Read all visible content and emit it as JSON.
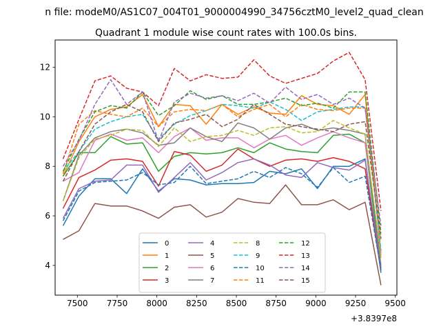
{
  "suptitle": "n file: modeM0/AS1C07_004T01_9000004990_34756cztM0_level2_quad_clean",
  "chart_data": {
    "type": "line",
    "title": "Quadrant 1 module wise count rates with 100.0s bins.",
    "xlabel": "",
    "ylabel": "",
    "x_offset_label": "+3.8397e8",
    "xlim": [
      7360,
      9510
    ],
    "ylim": [
      2.8,
      13.1
    ],
    "grid": false,
    "legend_position": "lower center",
    "x_ticks": [
      7500,
      7750,
      8000,
      8250,
      8500,
      8750,
      9000,
      9250,
      9500
    ],
    "y_ticks": [
      4,
      6,
      8,
      10,
      12
    ],
    "x": [
      7410,
      7460,
      7510,
      7560,
      7610,
      7660,
      7710,
      7760,
      7810,
      7860,
      7910,
      7960,
      8010,
      8060,
      8110,
      8160,
      8210,
      8260,
      8310,
      8360,
      8410,
      8460,
      8510,
      8560,
      8610,
      8660,
      8710,
      8760,
      8810,
      8860,
      8910,
      8960,
      9010,
      9060,
      9110,
      9160,
      9210,
      9260,
      9310,
      9360,
      9410
    ],
    "series": [
      {
        "name": "0",
        "color": "#1f77b4",
        "dash": "solid",
        "x": [
          7410,
          7510,
          7610,
          7710,
          7810,
          7910,
          8010,
          8110,
          8210,
          8310,
          8410,
          8510,
          8610,
          8710,
          8810,
          8910,
          9010,
          9110,
          9210,
          9310,
          9410
        ],
        "values": [
          5.6,
          6.8,
          7.5,
          7.5,
          6.9,
          7.9,
          7.0,
          7.5,
          7.45,
          7.25,
          7.3,
          7.3,
          7.35,
          7.8,
          7.7,
          7.9,
          7.1,
          8.0,
          8.0,
          8.3,
          3.7
        ]
      },
      {
        "name": "1",
        "color": "#ff7f0e",
        "dash": "solid",
        "x": [
          7410,
          7510,
          7610,
          7710,
          7810,
          7910,
          8010,
          8110,
          8210,
          8310,
          8410,
          8510,
          8610,
          8710,
          8810,
          8910,
          9010,
          9110,
          9210,
          9310,
          9410
        ],
        "values": [
          7.6,
          9.0,
          10.0,
          10.3,
          10.4,
          10.9,
          9.6,
          10.5,
          10.45,
          9.7,
          10.5,
          10.1,
          10.4,
          10.15,
          10.1,
          10.85,
          10.5,
          10.45,
          10.1,
          10.9,
          4.5
        ]
      },
      {
        "name": "2",
        "color": "#2ca02c",
        "dash": "solid",
        "x": [
          7410,
          7510,
          7610,
          7710,
          7810,
          7910,
          8010,
          8110,
          8210,
          8310,
          8410,
          8510,
          8610,
          8710,
          8810,
          8910,
          9010,
          9110,
          9210,
          9310,
          9410
        ],
        "values": [
          7.6,
          8.55,
          8.55,
          9.2,
          8.9,
          8.95,
          7.8,
          8.4,
          8.55,
          8.5,
          8.55,
          8.75,
          8.55,
          8.95,
          8.7,
          8.6,
          8.55,
          9.25,
          9.3,
          8.95,
          3.9
        ]
      },
      {
        "name": "3",
        "color": "#d62728",
        "dash": "solid",
        "x": [
          7410,
          7510,
          7610,
          7710,
          7810,
          7910,
          8010,
          8110,
          8210,
          8310,
          8410,
          8510,
          8610,
          8710,
          8810,
          8910,
          9010,
          9110,
          9210,
          9310,
          9410
        ],
        "values": [
          6.3,
          7.55,
          7.85,
          8.25,
          8.3,
          8.2,
          7.2,
          8.6,
          8.45,
          7.8,
          8.05,
          8.7,
          8.3,
          8.0,
          8.25,
          8.3,
          8.2,
          8.35,
          8.2,
          7.9,
          3.8
        ]
      },
      {
        "name": "4",
        "color": "#9467bd",
        "dash": "solid",
        "x": [
          7410,
          7510,
          7610,
          7710,
          7810,
          7910,
          8010,
          8110,
          8210,
          8310,
          8410,
          8510,
          8610,
          8710,
          8810,
          8910,
          9010,
          9110,
          9210,
          9310,
          9410
        ],
        "values": [
          5.9,
          7.1,
          7.4,
          7.45,
          8.05,
          8.05,
          6.95,
          7.55,
          8.15,
          7.45,
          7.75,
          8.15,
          8.3,
          8.05,
          7.65,
          7.55,
          8.15,
          7.95,
          7.85,
          8.25,
          3.9
        ]
      },
      {
        "name": "5",
        "color": "#8c564b",
        "dash": "solid",
        "x": [
          7410,
          7510,
          7610,
          7710,
          7810,
          7910,
          8010,
          8110,
          8210,
          8310,
          8410,
          8510,
          8610,
          8710,
          8810,
          8910,
          9010,
          9110,
          9210,
          9310,
          9410
        ],
        "values": [
          5.05,
          5.4,
          6.5,
          6.4,
          6.4,
          6.2,
          5.9,
          6.35,
          6.45,
          5.95,
          6.15,
          6.7,
          6.55,
          6.5,
          7.25,
          6.45,
          6.45,
          6.65,
          6.25,
          6.55,
          3.2
        ]
      },
      {
        "name": "6",
        "color": "#e377c2",
        "dash": "solid",
        "x": [
          7410,
          7510,
          7610,
          7710,
          7810,
          7910,
          8010,
          8110,
          8210,
          8310,
          8410,
          8510,
          8610,
          8710,
          8810,
          8910,
          9010,
          9110,
          9210,
          9310,
          9410
        ],
        "values": [
          7.4,
          7.75,
          9.05,
          9.3,
          9.05,
          9.15,
          8.55,
          9.2,
          9.55,
          9.05,
          9.15,
          9.15,
          8.75,
          9.1,
          9.25,
          8.85,
          9.15,
          9.4,
          9.15,
          8.95,
          4.4
        ]
      },
      {
        "name": "7",
        "color": "#7f7f7f",
        "dash": "solid",
        "x": [
          7410,
          7510,
          7610,
          7710,
          7810,
          7910,
          8010,
          8110,
          8210,
          8310,
          8410,
          8510,
          8610,
          8710,
          8810,
          8910,
          9010,
          9110,
          9210,
          9310,
          9410
        ],
        "values": [
          6.6,
          8.45,
          9.15,
          9.4,
          9.5,
          9.35,
          8.85,
          8.95,
          9.55,
          9.2,
          9.0,
          9.75,
          9.55,
          9.1,
          9.55,
          9.7,
          9.45,
          9.55,
          9.45,
          9.3,
          4.0
        ]
      },
      {
        "name": "8",
        "color": "#bcbd22",
        "dash": "dashed",
        "x": [
          7410,
          7510,
          7610,
          7710,
          7810,
          7910,
          8010,
          8110,
          8210,
          8310,
          8410,
          8510,
          8610,
          8710,
          8810,
          8910,
          9010,
          9110,
          9210,
          9310,
          9410
        ],
        "values": [
          6.6,
          8.35,
          9.1,
          9.25,
          9.5,
          9.45,
          8.8,
          9.55,
          9.0,
          9.2,
          9.25,
          9.45,
          9.25,
          9.55,
          9.6,
          9.35,
          9.4,
          9.85,
          9.55,
          9.3,
          4.3
        ]
      },
      {
        "name": "9",
        "color": "#17becf",
        "dash": "dashed",
        "x": [
          7410,
          7510,
          7610,
          7710,
          7810,
          7910,
          8010,
          8110,
          8210,
          8310,
          8410,
          8510,
          8610,
          8710,
          8810,
          8910,
          9010,
          9110,
          9210,
          9310,
          9410
        ],
        "values": [
          7.8,
          8.6,
          9.5,
          9.8,
          10.0,
          10.1,
          9.1,
          9.7,
          10.05,
          10.25,
          10.5,
          10.45,
          10.35,
          10.6,
          10.3,
          9.85,
          10.2,
          10.3,
          10.4,
          10.4,
          4.6
        ]
      },
      {
        "name": "10",
        "color": "#1f77b4",
        "dash": "dashed",
        "x": [
          7410,
          7510,
          7610,
          7710,
          7810,
          7910,
          8010,
          8110,
          8210,
          8310,
          8410,
          8510,
          8610,
          8710,
          8810,
          8910,
          9010,
          9110,
          9210,
          9310,
          9410
        ],
        "values": [
          5.8,
          7.0,
          7.35,
          7.4,
          7.45,
          7.75,
          7.25,
          7.35,
          8.0,
          7.3,
          7.4,
          7.5,
          7.8,
          7.55,
          7.95,
          7.7,
          7.15,
          7.95,
          7.35,
          7.6,
          3.8
        ]
      },
      {
        "name": "11",
        "color": "#ff7f0e",
        "dash": "dashed",
        "x": [
          7410,
          7510,
          7610,
          7710,
          7810,
          7910,
          8010,
          8110,
          8210,
          8310,
          8410,
          8510,
          8610,
          8710,
          8810,
          8910,
          9010,
          9110,
          9210,
          9310,
          9410
        ],
        "values": [
          7.7,
          9.7,
          10.25,
          10.1,
          10.0,
          10.35,
          9.6,
          10.2,
          10.3,
          10.25,
          10.5,
          10.0,
          10.3,
          10.5,
          10.0,
          10.5,
          10.3,
          10.25,
          10.35,
          10.35,
          5.0
        ]
      },
      {
        "name": "12",
        "color": "#2ca02c",
        "dash": "dashed",
        "x": [
          7410,
          7510,
          7610,
          7710,
          7810,
          7910,
          8010,
          8110,
          8210,
          8310,
          8410,
          8510,
          8610,
          8710,
          8810,
          8910,
          9010,
          9110,
          9210,
          9310,
          9410
        ],
        "values": [
          7.8,
          9.1,
          10.2,
          10.45,
          10.35,
          11.0,
          10.05,
          10.45,
          11.05,
          10.7,
          10.85,
          10.5,
          10.5,
          10.6,
          10.75,
          10.45,
          10.55,
          10.35,
          11.0,
          11.0,
          5.3
        ]
      },
      {
        "name": "13",
        "color": "#d62728",
        "dash": "dashed",
        "x": [
          7410,
          7510,
          7610,
          7710,
          7810,
          7910,
          8010,
          8110,
          8210,
          8310,
          8410,
          8510,
          8610,
          8710,
          8810,
          8910,
          9010,
          9110,
          9210,
          9310,
          9410
        ],
        "values": [
          8.3,
          9.9,
          11.45,
          11.65,
          11.15,
          11.0,
          10.45,
          11.95,
          11.45,
          11.7,
          11.55,
          11.6,
          12.3,
          11.65,
          11.35,
          11.55,
          11.75,
          12.25,
          12.6,
          11.5,
          6.2
        ]
      },
      {
        "name": "14",
        "color": "#9467bd",
        "dash": "dashed",
        "x": [
          7410,
          7510,
          7610,
          7710,
          7810,
          7910,
          8010,
          8110,
          8210,
          8310,
          8410,
          8510,
          8610,
          8710,
          8810,
          8910,
          9010,
          9110,
          9210,
          9310,
          9410
        ],
        "values": [
          8.0,
          9.05,
          10.5,
          11.5,
          10.5,
          11.0,
          9.0,
          10.6,
          10.95,
          10.75,
          10.85,
          10.65,
          10.95,
          10.55,
          11.2,
          10.7,
          10.9,
          10.5,
          10.75,
          10.35,
          5.6
        ]
      },
      {
        "name": "15",
        "color": "#8c564b",
        "dash": "dashed",
        "x": [
          7410,
          7510,
          7610,
          7710,
          7810,
          7910,
          8010,
          8110,
          8210,
          8310,
          8410,
          8510,
          8610,
          8710,
          8810,
          8910,
          9010,
          9110,
          9210,
          9310,
          9410
        ],
        "values": [
          7.4,
          8.6,
          9.7,
          10.2,
          10.5,
          10.2,
          9.0,
          9.75,
          9.9,
          10.1,
          9.6,
          9.9,
          10.5,
          10.1,
          9.7,
          9.6,
          9.5,
          9.4,
          9.7,
          9.8,
          5.1
        ]
      }
    ]
  }
}
